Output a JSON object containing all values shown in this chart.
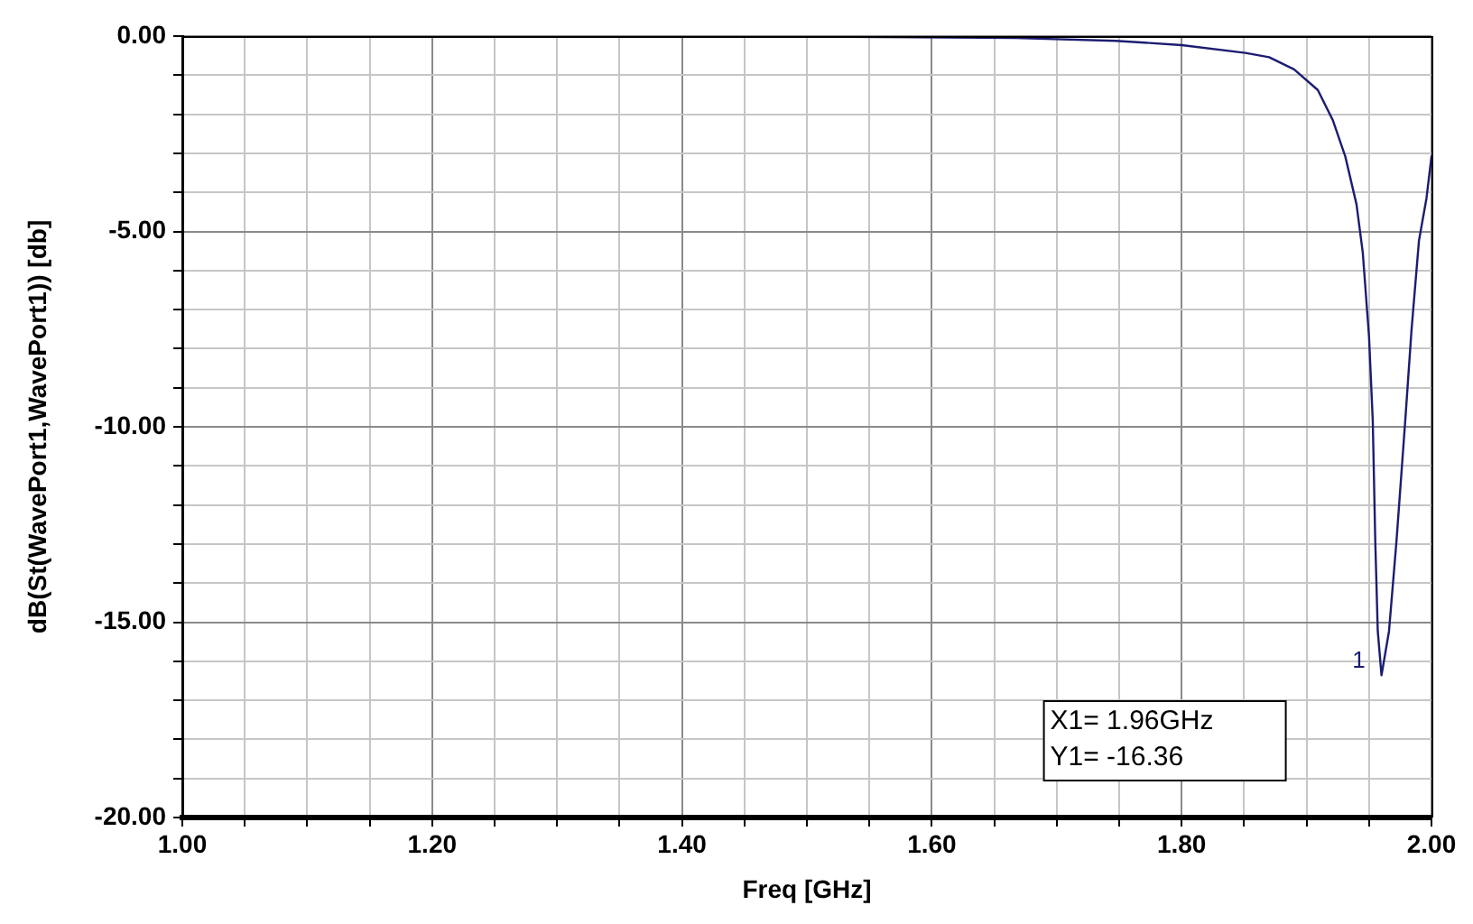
{
  "chart_data": {
    "type": "line",
    "xlabel": "Freq [GHz]",
    "ylabel": "dB(St(WavePort1,WavePort1)) [db]",
    "series": [
      {
        "color": "#1c1c72",
        "x": [
          1.3,
          1.5,
          1.667,
          1.747,
          1.8,
          1.851,
          1.87,
          1.89,
          1.909,
          1.921,
          1.931,
          1.94,
          1.945,
          1.95,
          1.953,
          1.955,
          1.957,
          1.96,
          1.966,
          1.972,
          1.979,
          1.984,
          1.99,
          1.996,
          2.0
        ],
        "values": [
          0,
          -0.01,
          -0.05,
          -0.12,
          -0.23,
          -0.43,
          -0.54,
          -0.85,
          -1.38,
          -2.15,
          -3.08,
          -4.31,
          -5.54,
          -7.69,
          -9.84,
          -12.92,
          -15.23,
          -16.36,
          -15.23,
          -12.92,
          -9.84,
          -7.53,
          -5.23,
          -4.15,
          -3.08
        ]
      }
    ],
    "xlim": [
      1,
      2
    ],
    "xticks": [
      {
        "value": 1,
        "label": "1.00"
      },
      {
        "value": 1.05,
        "label": null
      },
      {
        "value": 1.1,
        "label": null
      },
      {
        "value": 1.15,
        "label": null
      },
      {
        "value": 1.2,
        "label": "1.20"
      },
      {
        "value": 1.25,
        "label": null
      },
      {
        "value": 1.3,
        "label": null
      },
      {
        "value": 1.35,
        "label": null
      },
      {
        "value": 1.4,
        "label": "1.40"
      },
      {
        "value": 1.45,
        "label": null
      },
      {
        "value": 1.5,
        "label": null
      },
      {
        "value": 1.55,
        "label": null
      },
      {
        "value": 1.6,
        "label": "1.60"
      },
      {
        "value": 1.65,
        "label": null
      },
      {
        "value": 1.7,
        "label": null
      },
      {
        "value": 1.75,
        "label": null
      },
      {
        "value": 1.8,
        "label": "1.80"
      },
      {
        "value": 1.85,
        "label": null
      },
      {
        "value": 1.9,
        "label": null
      },
      {
        "value": 1.95,
        "label": null
      },
      {
        "value": 2,
        "label": "2.00"
      }
    ],
    "ylim": [
      -20,
      0
    ],
    "yticks": [
      {
        "value": -20,
        "label": "-20.00"
      },
      {
        "value": -19,
        "label": null
      },
      {
        "value": -18,
        "label": null
      },
      {
        "value": -17,
        "label": null
      },
      {
        "value": -16,
        "label": null
      },
      {
        "value": -15,
        "label": "-15.00"
      },
      {
        "value": -14,
        "label": null
      },
      {
        "value": -13,
        "label": null
      },
      {
        "value": -12,
        "label": null
      },
      {
        "value": -11,
        "label": null
      },
      {
        "value": -10,
        "label": "-10.00"
      },
      {
        "value": -9,
        "label": null
      },
      {
        "value": -8,
        "label": null
      },
      {
        "value": -7,
        "label": null
      },
      {
        "value": -6,
        "label": null
      },
      {
        "value": -5,
        "label": "-5.00"
      },
      {
        "value": -4,
        "label": null
      },
      {
        "value": -3,
        "label": null
      },
      {
        "value": -2,
        "label": null
      },
      {
        "value": -1,
        "label": null
      },
      {
        "value": 0,
        "label": "0.00"
      }
    ],
    "grid": true,
    "marker": "none",
    "line_style": "solid",
    "annotations": [
      {
        "text": "1",
        "x": 1.96,
        "y": -16.36
      },
      "X1= 1.96GHz",
      "Y1= -16.36"
    ]
  }
}
